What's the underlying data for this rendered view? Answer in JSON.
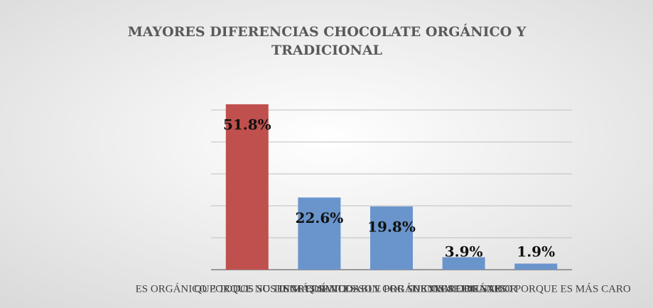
{
  "chart_data": {
    "type": "bar",
    "title_lines": [
      "MAYORES DIFERENCIAS CHOCOLATE ORGÁNICO Y",
      "TRADICIONAL"
    ],
    "categories": [
      "ES ORGÁNICO PORQUE NO TIENE QUÍMICOS",
      "QUE TODOS SUS INGREDIENTES SON ORGÁNICOS",
      "ES MÁS SALUDABLE POR SUS INGREDIENTES",
      "TIENE MEJOR SABOR",
      "ES ORGÁNICO PORQUE ES MÁS CARO"
    ],
    "values": [
      51.8,
      22.6,
      19.8,
      3.9,
      1.9
    ],
    "value_labels": [
      "51.8%",
      "22.6%",
      "19.8%",
      "3.9%",
      "1.9%"
    ],
    "colors": [
      "#c0504d",
      "#6a95cc",
      "#6a95cc",
      "#6a95cc",
      "#6a95cc"
    ],
    "ylim": [
      0,
      60
    ],
    "yticks": [
      0,
      10,
      20,
      30,
      40,
      50
    ],
    "grid": true
  }
}
